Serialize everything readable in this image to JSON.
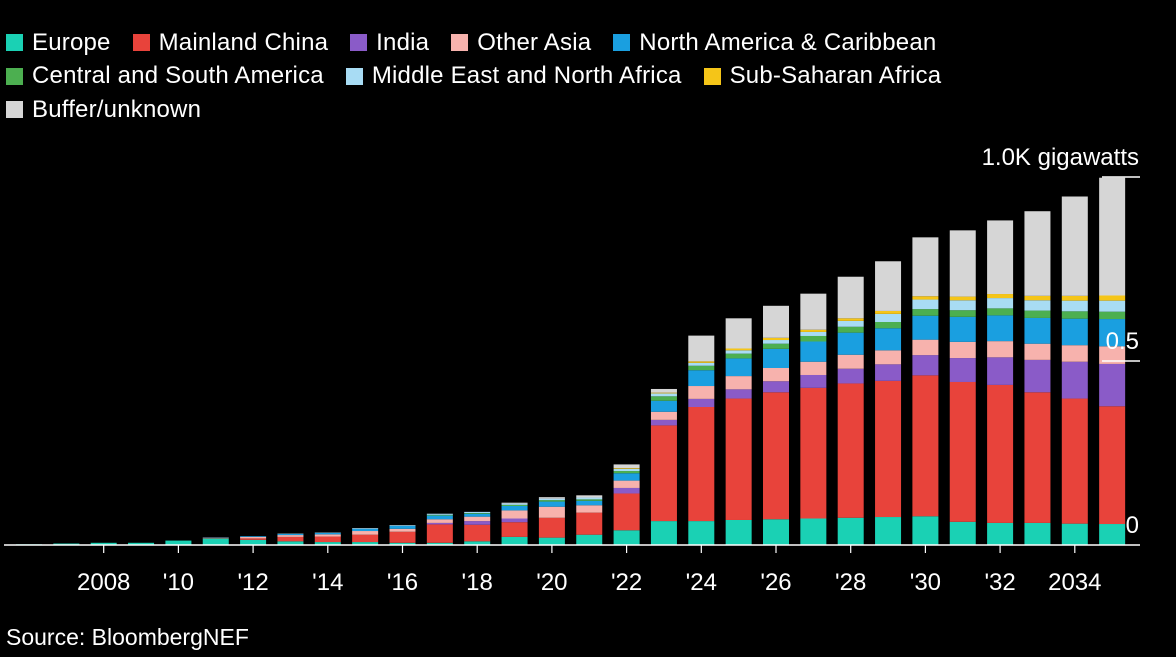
{
  "legend": [
    {
      "name": "Europe",
      "color": "#1ad1b4"
    },
    {
      "name": "Mainland China",
      "color": "#e8433b"
    },
    {
      "name": "India",
      "color": "#8a5bc8"
    },
    {
      "name": "Other Asia",
      "color": "#f7b2ad"
    },
    {
      "name": "North America & Caribbean",
      "color": "#1a9fe0"
    },
    {
      "name": "Central and South America",
      "color": "#4caf50"
    },
    {
      "name": "Middle East and North Africa",
      "color": "#a8dcf4"
    },
    {
      "name": "Sub-Saharan Africa",
      "color": "#f5c518"
    },
    {
      "name": "Buffer/unknown",
      "color": "#d6d6d6"
    }
  ],
  "source": "Source: BloombergNEF",
  "chart_data": {
    "type": "bar",
    "stacked": true,
    "x": [
      2006,
      2007,
      2008,
      2009,
      2010,
      2011,
      2012,
      2013,
      2014,
      2015,
      2016,
      2017,
      2018,
      2019,
      2020,
      2021,
      2022,
      2023,
      2024,
      2025,
      2026,
      2027,
      2028,
      2029,
      2030,
      2031,
      2032,
      2033,
      2034,
      2035
    ],
    "x_tick_labels": [
      {
        "x": 2008,
        "label": "2008"
      },
      {
        "x": 2010,
        "label": "'10"
      },
      {
        "x": 2012,
        "label": "'12"
      },
      {
        "x": 2014,
        "label": "'14"
      },
      {
        "x": 2016,
        "label": "'16"
      },
      {
        "x": 2018,
        "label": "'18"
      },
      {
        "x": 2020,
        "label": "'20"
      },
      {
        "x": 2022,
        "label": "'22"
      },
      {
        "x": 2024,
        "label": "'24"
      },
      {
        "x": 2026,
        "label": "'26"
      },
      {
        "x": 2028,
        "label": "'28"
      },
      {
        "x": 2030,
        "label": "'30"
      },
      {
        "x": 2032,
        "label": "'32"
      },
      {
        "x": 2034,
        "label": "2034"
      }
    ],
    "y_ticks": [
      {
        "value": 0,
        "label": "0"
      },
      {
        "value": 0.5,
        "label": "0.5"
      },
      {
        "value": 1.0,
        "label": "1.0K gigawatts"
      }
    ],
    "ylim": [
      0,
      1.0
    ],
    "series": [
      {
        "name": "Europe",
        "values": [
          0.002,
          0.004,
          0.006,
          0.006,
          0.012,
          0.018,
          0.014,
          0.01,
          0.008,
          0.008,
          0.006,
          0.006,
          0.01,
          0.022,
          0.02,
          0.028,
          0.04,
          0.065,
          0.065,
          0.068,
          0.07,
          0.072,
          0.074,
          0.076,
          0.078,
          0.063,
          0.06,
          0.06,
          0.058,
          0.057
        ]
      },
      {
        "name": "Mainland China",
        "values": [
          0,
          0,
          0,
          0,
          0,
          0.002,
          0.004,
          0.012,
          0.015,
          0.02,
          0.03,
          0.05,
          0.045,
          0.04,
          0.054,
          0.06,
          0.1,
          0.26,
          0.31,
          0.33,
          0.345,
          0.355,
          0.365,
          0.37,
          0.383,
          0.38,
          0.375,
          0.355,
          0.34,
          0.32
        ]
      },
      {
        "name": "India",
        "values": [
          0,
          0,
          0,
          0,
          0,
          0,
          0,
          0,
          0,
          0,
          0,
          0.004,
          0.01,
          0.01,
          0,
          0,
          0.015,
          0.015,
          0.022,
          0.025,
          0.03,
          0.035,
          0.04,
          0.045,
          0.055,
          0.065,
          0.075,
          0.088,
          0.1,
          0.115
        ]
      },
      {
        "name": "Other Asia",
        "values": [
          0,
          0,
          0,
          0,
          0,
          0,
          0.004,
          0.005,
          0.006,
          0.01,
          0.008,
          0.01,
          0.012,
          0.022,
          0.03,
          0.02,
          0.02,
          0.022,
          0.035,
          0.036,
          0.036,
          0.036,
          0.038,
          0.038,
          0.042,
          0.044,
          0.044,
          0.044,
          0.045,
          0.048
        ]
      },
      {
        "name": "North America & Caribbean",
        "values": [
          0,
          0,
          0,
          0,
          0,
          0.001,
          0.002,
          0.003,
          0.004,
          0.006,
          0.008,
          0.01,
          0.008,
          0.012,
          0.014,
          0.012,
          0.02,
          0.03,
          0.043,
          0.048,
          0.052,
          0.055,
          0.06,
          0.06,
          0.065,
          0.068,
          0.07,
          0.07,
          0.072,
          0.074
        ]
      },
      {
        "name": "Central and South America",
        "values": [
          0,
          0,
          0,
          0,
          0,
          0,
          0,
          0,
          0,
          0,
          0,
          0.002,
          0.002,
          0.003,
          0.004,
          0.004,
          0.006,
          0.012,
          0.012,
          0.013,
          0.014,
          0.015,
          0.016,
          0.017,
          0.018,
          0.018,
          0.019,
          0.02,
          0.02,
          0.02
        ]
      },
      {
        "name": "Middle East and North Africa",
        "values": [
          0,
          0,
          0,
          0,
          0,
          0,
          0,
          0.001,
          0.001,
          0.002,
          0.002,
          0.003,
          0.003,
          0.004,
          0.004,
          0.005,
          0.006,
          0.008,
          0.008,
          0.009,
          0.01,
          0.011,
          0.016,
          0.022,
          0.026,
          0.027,
          0.028,
          0.028,
          0.029,
          0.03
        ]
      },
      {
        "name": "Sub-Saharan Africa",
        "values": [
          0,
          0,
          0,
          0,
          0,
          0,
          0,
          0,
          0,
          0,
          0,
          0,
          0,
          0,
          0,
          0,
          0.002,
          0.002,
          0.004,
          0.005,
          0.006,
          0.006,
          0.007,
          0.008,
          0.009,
          0.01,
          0.011,
          0.012,
          0.013,
          0.014
        ]
      },
      {
        "name": "Buffer/unknown",
        "values": [
          0,
          0,
          0,
          0,
          0,
          0,
          0,
          0,
          0,
          0,
          0,
          0,
          0,
          0.002,
          0.004,
          0.006,
          0.01,
          0.01,
          0.07,
          0.082,
          0.087,
          0.098,
          0.113,
          0.135,
          0.16,
          0.18,
          0.2,
          0.23,
          0.27,
          0.32
        ]
      }
    ]
  }
}
